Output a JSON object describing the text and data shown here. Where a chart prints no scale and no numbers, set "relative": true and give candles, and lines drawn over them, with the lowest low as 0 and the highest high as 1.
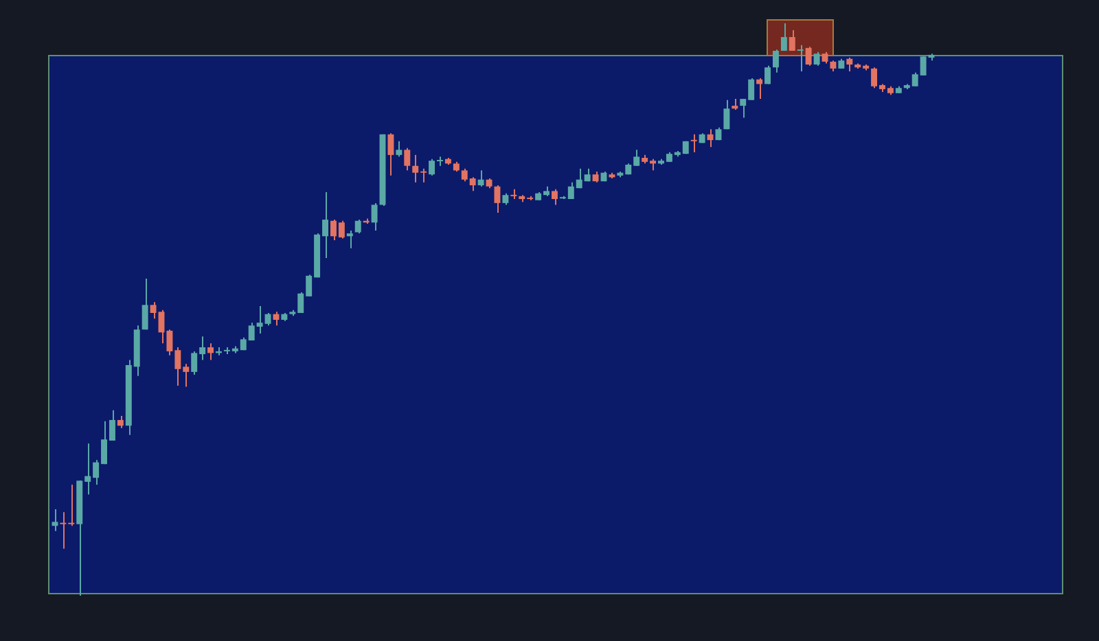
{
  "chart_data": {
    "type": "candlestick",
    "relative": true,
    "categories": [
      null,
      null,
      null,
      null,
      null,
      null,
      null,
      null,
      null,
      null,
      null,
      null,
      null,
      null,
      null,
      null,
      null,
      null,
      null,
      null,
      null,
      null,
      null,
      null,
      null,
      null,
      null,
      null,
      null,
      null,
      null,
      null,
      null,
      null,
      null,
      null,
      null,
      null,
      null,
      null,
      null,
      null,
      null,
      null,
      null,
      null,
      null,
      null,
      null,
      null,
      null,
      null,
      null,
      null,
      null,
      null,
      null,
      null,
      null,
      null,
      null,
      null,
      null,
      null,
      null,
      null,
      null,
      null,
      null,
      null,
      null,
      null,
      null,
      null,
      null,
      null,
      null,
      null,
      null,
      null,
      null,
      null,
      null,
      null,
      null,
      null,
      null,
      null,
      null,
      null,
      null,
      null,
      null,
      null,
      null,
      null,
      null,
      null,
      null,
      null,
      null,
      null,
      null,
      null,
      null,
      null,
      null,
      null
    ],
    "ohlc": [
      [
        0.122,
        0.151,
        0.113,
        0.129
      ],
      [
        0.127,
        0.146,
        0.082,
        0.125
      ],
      [
        0.127,
        0.194,
        0.122,
        0.125
      ],
      [
        0.125,
        0.201,
        0,
        0.201
      ],
      [
        0.199,
        0.266,
        0.177,
        0.209
      ],
      [
        0.206,
        0.237,
        0.194,
        0.233
      ],
      [
        0.23,
        0.305,
        0.23,
        0.273
      ],
      [
        0.271,
        0.324,
        0.271,
        0.307
      ],
      [
        0.307,
        0.314,
        0.293,
        0.297
      ],
      [
        0.297,
        0.412,
        0.281,
        0.403
      ],
      [
        0.4,
        0.472,
        0.384,
        0.465
      ],
      [
        0.465,
        0.554,
        0.465,
        0.508
      ],
      [
        0.508,
        0.513,
        0.484,
        0.494
      ],
      [
        0.496,
        0.499,
        0.441,
        0.46
      ],
      [
        0.463,
        0.465,
        0.42,
        0.427
      ],
      [
        0.429,
        0.434,
        0.367,
        0.396
      ],
      [
        0.4,
        0.405,
        0.365,
        0.391
      ],
      [
        0.391,
        0.427,
        0.386,
        0.424
      ],
      [
        0.422,
        0.453,
        0.412,
        0.434
      ],
      [
        0.434,
        0.441,
        0.412,
        0.424
      ],
      [
        0.424,
        0.434,
        0.42,
        0.427
      ],
      [
        0.427,
        0.434,
        0.422,
        0.429
      ],
      [
        0.427,
        0.436,
        0.424,
        0.432
      ],
      [
        0.429,
        0.451,
        0.429,
        0.448
      ],
      [
        0.446,
        0.477,
        0.446,
        0.472
      ],
      [
        0.47,
        0.506,
        0.458,
        0.477
      ],
      [
        0.475,
        0.494,
        0.472,
        0.492
      ],
      [
        0.492,
        0.496,
        0.472,
        0.482
      ],
      [
        0.482,
        0.494,
        0.48,
        0.492
      ],
      [
        0.492,
        0.499,
        0.489,
        0.496
      ],
      [
        0.494,
        0.53,
        0.494,
        0.528
      ],
      [
        0.523,
        0.561,
        0.523,
        0.559
      ],
      [
        0.556,
        0.633,
        0.556,
        0.631
      ],
      [
        0.628,
        0.705,
        0.59,
        0.657
      ],
      [
        0.655,
        0.657,
        0.621,
        0.628
      ],
      [
        0.652,
        0.655,
        0.624,
        0.626
      ],
      [
        0.628,
        0.638,
        0.607,
        0.633
      ],
      [
        0.635,
        0.657,
        0.633,
        0.655
      ],
      [
        0.655,
        0.659,
        0.65,
        0.652
      ],
      [
        0.652,
        0.686,
        0.638,
        0.683
      ],
      [
        0.683,
        0.806,
        0.681,
        0.806
      ],
      [
        0.806,
        0.808,
        0.734,
        0.77
      ],
      [
        0.77,
        0.794,
        0.767,
        0.779
      ],
      [
        0.779,
        0.782,
        0.743,
        0.751
      ],
      [
        0.751,
        0.77,
        0.722,
        0.739
      ],
      [
        0.741,
        0.746,
        0.722,
        0.739
      ],
      [
        0.736,
        0.763,
        0.734,
        0.76
      ],
      [
        0.759,
        0.767,
        0.751,
        0.76
      ],
      [
        0.763,
        0.765,
        0.753,
        0.755
      ],
      [
        0.755,
        0.758,
        0.741,
        0.743
      ],
      [
        0.743,
        0.746,
        0.724,
        0.727
      ],
      [
        0.729,
        0.731,
        0.707,
        0.717
      ],
      [
        0.717,
        0.743,
        0.715,
        0.727
      ],
      [
        0.727,
        0.729,
        0.712,
        0.715
      ],
      [
        0.715,
        0.717,
        0.669,
        0.686
      ],
      [
        0.686,
        0.703,
        0.683,
        0.7
      ],
      [
        0.7,
        0.71,
        0.693,
        0.698
      ],
      [
        0.698,
        0.7,
        0.688,
        0.693
      ],
      [
        0.695,
        0.698,
        0.691,
        0.693
      ],
      [
        0.691,
        0.705,
        0.691,
        0.703
      ],
      [
        0.7,
        0.715,
        0.698,
        0.707
      ],
      [
        0.707,
        0.71,
        0.683,
        0.693
      ],
      [
        0.694,
        0.698,
        0.693,
        0.695
      ],
      [
        0.693,
        0.722,
        0.693,
        0.715
      ],
      [
        0.712,
        0.746,
        0.712,
        0.727
      ],
      [
        0.724,
        0.746,
        0.724,
        0.736
      ],
      [
        0.736,
        0.741,
        0.722,
        0.724
      ],
      [
        0.724,
        0.741,
        0.724,
        0.739
      ],
      [
        0.736,
        0.739,
        0.729,
        0.731
      ],
      [
        0.734,
        0.741,
        0.731,
        0.739
      ],
      [
        0.736,
        0.755,
        0.736,
        0.753
      ],
      [
        0.751,
        0.779,
        0.751,
        0.767
      ],
      [
        0.765,
        0.77,
        0.755,
        0.758
      ],
      [
        0.76,
        0.763,
        0.743,
        0.755
      ],
      [
        0.755,
        0.763,
        0.753,
        0.76
      ],
      [
        0.758,
        0.775,
        0.758,
        0.772
      ],
      [
        0.77,
        0.777,
        0.767,
        0.775
      ],
      [
        0.772,
        0.794,
        0.772,
        0.794
      ],
      [
        0.796,
        0.806,
        0.775,
        0.794
      ],
      [
        0.791,
        0.808,
        0.791,
        0.806
      ],
      [
        0.806,
        0.815,
        0.784,
        0.796
      ],
      [
        0.796,
        0.818,
        0.796,
        0.815
      ],
      [
        0.815,
        0.866,
        0.815,
        0.851
      ],
      [
        0.856,
        0.868,
        0.849,
        0.851
      ],
      [
        0.856,
        0.868,
        0.835,
        0.868
      ],
      [
        0.866,
        0.904,
        0.866,
        0.902
      ],
      [
        0.902,
        0.904,
        0.868,
        0.894
      ],
      [
        0.894,
        0.926,
        0.894,
        0.923
      ],
      [
        0.923,
        0.954,
        0.914,
        0.952
      ],
      [
        0.952,
        1,
        0.952,
        0.976
      ],
      [
        0.976,
        0.988,
        0.952,
        0.952
      ],
      [
        0.952,
        0.962,
        0.916,
        0.954
      ],
      [
        0.957,
        0.959,
        0.926,
        0.928
      ],
      [
        0.928,
        0.95,
        0.926,
        0.947
      ],
      [
        0.947,
        0.95,
        0.93,
        0.933
      ],
      [
        0.933,
        0.935,
        0.916,
        0.921
      ],
      [
        0.921,
        0.938,
        0.921,
        0.935
      ],
      [
        0.938,
        0.94,
        0.916,
        0.928
      ],
      [
        0.928,
        0.93,
        0.921,
        0.923
      ],
      [
        0.926,
        0.928,
        0.918,
        0.921
      ],
      [
        0.921,
        0.923,
        0.887,
        0.89
      ],
      [
        0.892,
        0.894,
        0.88,
        0.885
      ],
      [
        0.887,
        0.89,
        0.875,
        0.878
      ],
      [
        0.878,
        0.89,
        0.878,
        0.887
      ],
      [
        0.887,
        0.894,
        0.885,
        0.892
      ],
      [
        0.89,
        0.914,
        0.89,
        0.911
      ],
      [
        0.909,
        0.942,
        0.909,
        0.942
      ],
      [
        0.94,
        0.947,
        0.935,
        0.945
      ]
    ],
    "colors": [
      "#5aa9a6",
      "#e27461",
      "#e27461",
      "#5aa9a6",
      "#5aa9a6",
      "#5aa9a6",
      "#5aa9a6",
      "#5aa9a6",
      "#e27461",
      "#5aa9a6",
      "#5aa9a6",
      "#5aa9a6",
      "#e27461",
      "#e27461",
      "#e27461",
      "#e27461",
      "#e27461",
      "#5aa9a6",
      "#5aa9a6",
      "#e27461",
      "#5aa9a6",
      "#5aa9a6",
      "#5aa9a6",
      "#5aa9a6",
      "#5aa9a6",
      "#5aa9a6",
      "#5aa9a6",
      "#e27461",
      "#5aa9a6",
      "#5aa9a6",
      "#5aa9a6",
      "#5aa9a6",
      "#5aa9a6",
      "#5aa9a6",
      "#e27461",
      "#e27461",
      "#5aa9a6",
      "#5aa9a6",
      "#e27461",
      "#5aa9a6",
      "#5aa9a6",
      "#e27461",
      "#5aa9a6",
      "#e27461",
      "#e27461",
      "#e27461",
      "#5aa9a6",
      "#5aa9a6",
      "#e27461",
      "#e27461",
      "#e27461",
      "#e27461",
      "#5aa9a6",
      "#e27461",
      "#e27461",
      "#5aa9a6",
      "#e27461",
      "#e27461",
      "#e27461",
      "#5aa9a6",
      "#5aa9a6",
      "#e27461",
      "#5aa9a6",
      "#5aa9a6",
      "#5aa9a6",
      "#5aa9a6",
      "#e27461",
      "#5aa9a6",
      "#e27461",
      "#5aa9a6",
      "#5aa9a6",
      "#5aa9a6",
      "#e27461",
      "#e27461",
      "#5aa9a6",
      "#5aa9a6",
      "#5aa9a6",
      "#5aa9a6",
      "#e27461",
      "#5aa9a6",
      "#e27461",
      "#5aa9a6",
      "#5aa9a6",
      "#e27461",
      "#5aa9a6",
      "#5aa9a6",
      "#e27461",
      "#5aa9a6",
      "#5aa9a6",
      "#5aa9a6",
      "#e27461",
      "#5aa9a6",
      "#e27461",
      "#5aa9a6",
      "#e27461",
      "#e27461",
      "#5aa9a6",
      "#e27461",
      "#e27461",
      "#e27461",
      "#e27461",
      "#e27461",
      "#e27461",
      "#5aa9a6",
      "#5aa9a6",
      "#5aa9a6",
      "#5aa9a6",
      "#5aa9a6"
    ]
  }
}
